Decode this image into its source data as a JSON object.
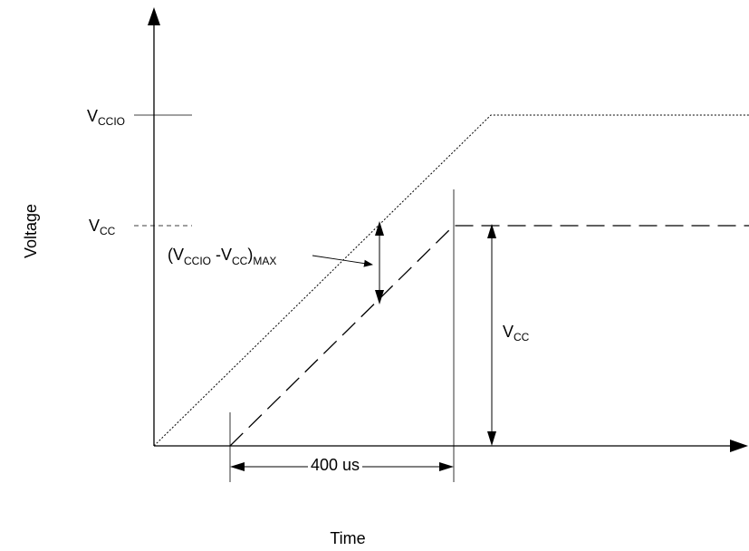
{
  "axes": {
    "y_label": "Voltage",
    "x_label": "Time"
  },
  "levels": {
    "vccio": {
      "main": "V",
      "sub": "CCIO"
    },
    "vcc": {
      "main": "V",
      "sub": "CC"
    }
  },
  "annotations": {
    "delta": {
      "open": "(V",
      "sub1": "CCIO",
      "mid": " -V",
      "sub2": "CC",
      "close": ")",
      "sub3": "MAX"
    },
    "vcc_height": {
      "main": "V",
      "sub": "CC"
    },
    "delay": "400 us"
  },
  "colors": {
    "line": "#000000",
    "background": "#ffffff"
  }
}
